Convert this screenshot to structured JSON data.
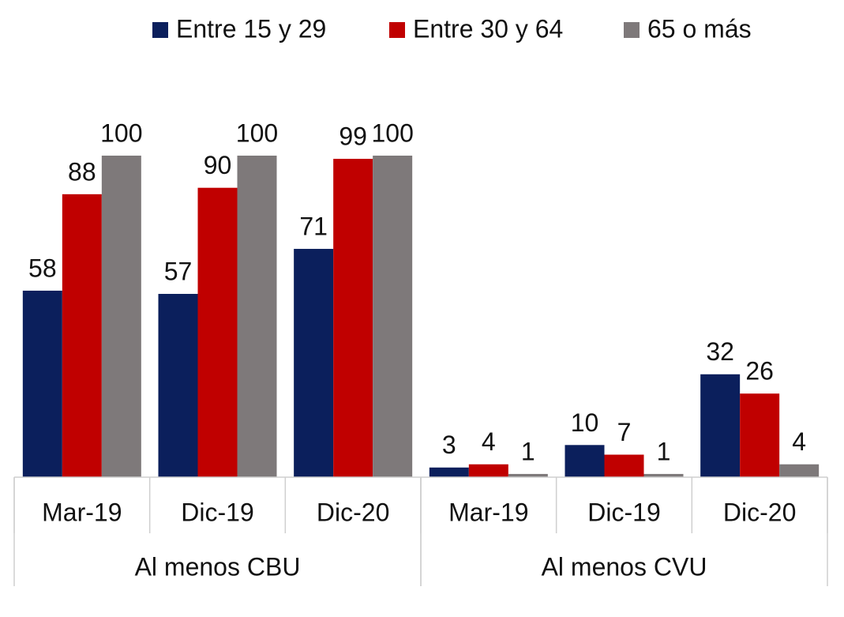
{
  "chart_data": {
    "type": "bar",
    "categories": [
      "Mar-19",
      "Dic-19",
      "Dic-20",
      "Mar-19",
      "Dic-19",
      "Dic-20"
    ],
    "groups": [
      {
        "label": "Al menos CBU",
        "span": 3
      },
      {
        "label": "Al menos CVU",
        "span": 3
      }
    ],
    "series": [
      {
        "name": "Entre 15 y 29",
        "color": "#0b1f5c",
        "values": [
          58,
          57,
          71,
          3,
          10,
          32
        ]
      },
      {
        "name": "Entre 30 y 64",
        "color": "#c00000",
        "values": [
          88,
          90,
          99,
          4,
          7,
          26
        ]
      },
      {
        "name": "65 o más",
        "color": "#7e797a",
        "values": [
          100,
          100,
          100,
          1,
          1,
          4
        ]
      }
    ],
    "legend": "top"
  }
}
